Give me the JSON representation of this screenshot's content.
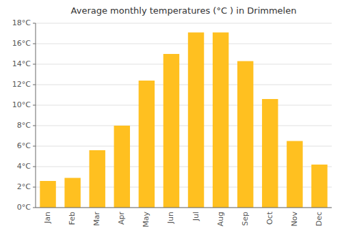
{
  "chart_data": {
    "type": "bar",
    "title": "Average monthly temperatures (°C ) in Drimmelen",
    "categories": [
      "Jan",
      "Feb",
      "Mar",
      "Apr",
      "May",
      "Jun",
      "Jul",
      "Aug",
      "Sep",
      "Oct",
      "Nov",
      "Dec"
    ],
    "values": [
      2.6,
      2.9,
      5.6,
      8.0,
      12.4,
      15.0,
      17.1,
      17.1,
      14.3,
      10.6,
      6.5,
      4.2
    ],
    "color": "#FFC020",
    "ylim": [
      0,
      18
    ],
    "yticks": [
      {
        "value": 0,
        "label": "0°C"
      },
      {
        "value": 2,
        "label": "2°C"
      },
      {
        "value": 4,
        "label": "4°C"
      },
      {
        "value": 6,
        "label": "6°C"
      },
      {
        "value": 8,
        "label": "8°C"
      },
      {
        "value": 10,
        "label": "10°C"
      },
      {
        "value": 12,
        "label": "12°C"
      },
      {
        "value": 14,
        "label": "14°C"
      },
      {
        "value": 16,
        "label": "16°C"
      },
      {
        "value": 18,
        "label": "18°C"
      }
    ],
    "grid": true
  }
}
